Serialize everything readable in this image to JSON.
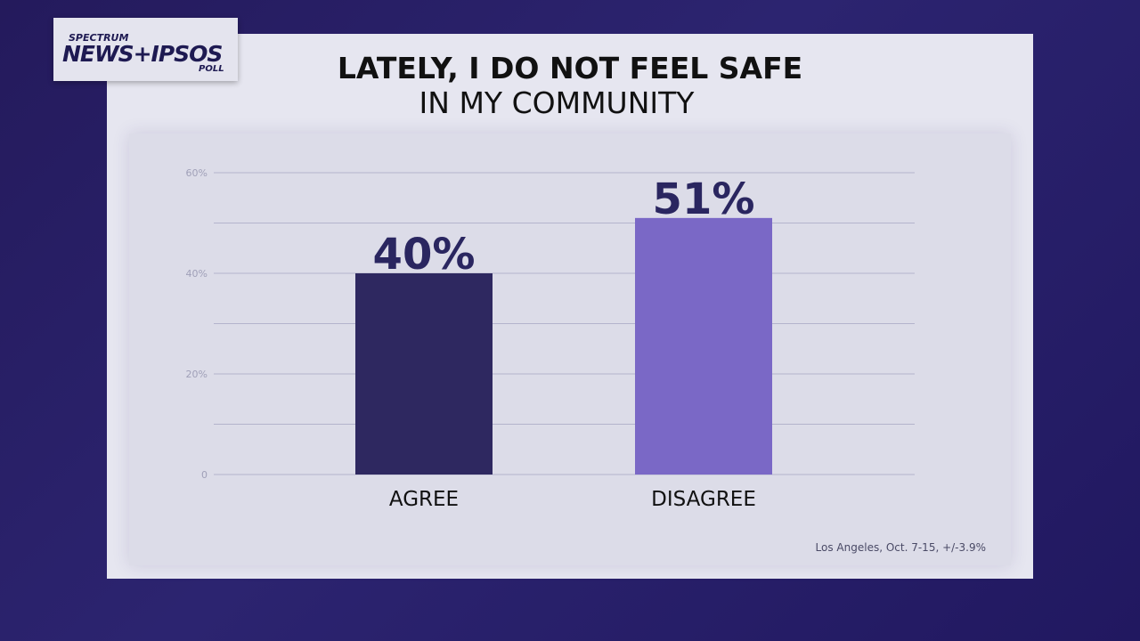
{
  "logo": {
    "line1": "SPECTRUM",
    "line2": "NEWS+IPSOS",
    "line3": "POLL"
  },
  "title": {
    "line1": "LATELY, I DO NOT FEEL SAFE",
    "line2": "IN MY COMMUNITY"
  },
  "footnote": "Los Angeles, Oct. 7-15, +/-3.9%",
  "chart_data": {
    "type": "bar",
    "title": "LATELY, I DO NOT FEEL SAFE IN MY COMMUNITY",
    "categories": [
      "AGREE",
      "DISAGREE"
    ],
    "values": [
      40,
      51
    ],
    "data_labels": [
      "40%",
      "51%"
    ],
    "colors": [
      "#2e2860",
      "#7a68c6"
    ],
    "ylim": [
      0,
      60
    ],
    "yticks": [
      {
        "value": 0,
        "label": "0"
      },
      {
        "value": 20,
        "label": "20%"
      },
      {
        "value": 40,
        "label": "40%"
      },
      {
        "value": 60,
        "label": "60%"
      }
    ],
    "gridlines": [
      0,
      10,
      20,
      30,
      40,
      50,
      60
    ],
    "xlabel": "",
    "ylabel": ""
  }
}
